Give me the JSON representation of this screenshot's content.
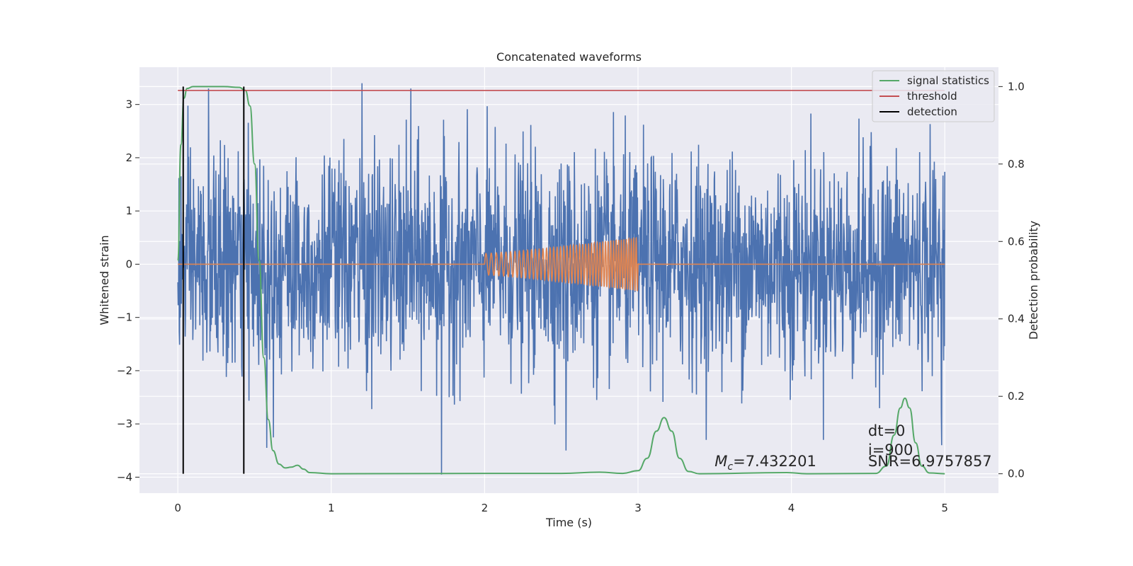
{
  "chart_data": {
    "type": "line",
    "title": "Concatenated waveforms",
    "xlabel": "Time (s)",
    "ylabel_left": "Whitened strain",
    "ylabel_right": "Detection probability",
    "xlim": [
      -0.25,
      5.35
    ],
    "ylim_left": [
      -4.3,
      3.7
    ],
    "ylim_right": [
      -0.05,
      1.05
    ],
    "x_ticks": [
      0,
      1,
      2,
      3,
      4,
      5
    ],
    "y_ticks_left": [
      -4,
      -3,
      -2,
      -1,
      0,
      1,
      2,
      3
    ],
    "y_ticks_right": [
      "0.0",
      "0.2",
      "0.4",
      "0.6",
      "0.8",
      "1.0"
    ],
    "grid": true,
    "legend_position": "top-right",
    "colors": {
      "noise": "#4c72b0",
      "template": "#dd8452",
      "signal_statistics": "#55a868",
      "threshold": "#c44e52",
      "detection": "#000000",
      "background": "#eaeaf2",
      "grid": "#ffffff"
    },
    "series": [
      {
        "name": "",
        "role": "whitened noise strain",
        "axis": "left",
        "x_range": [
          0,
          5
        ],
        "typical_amplitude": 1.0,
        "peaks": [
          {
            "x": 0.2,
            "y": 3.3
          },
          {
            "x": 1.2,
            "y": 3.4
          },
          {
            "x": 1.52,
            "y": 3.3
          },
          {
            "x": 1.72,
            "y": -3.95
          },
          {
            "x": 2.53,
            "y": -3.5
          },
          {
            "x": 4.98,
            "y": -3.4
          },
          {
            "x": 0.58,
            "y": -3.45
          }
        ]
      },
      {
        "name": "",
        "role": "injected chirp template",
        "axis": "left",
        "x_range": [
          0,
          5
        ],
        "chirp_start": 2.0,
        "chirp_end": 3.0,
        "amplitude_start": 0.2,
        "amplitude_end": 0.5
      },
      {
        "name": "signal statistics",
        "axis": "right",
        "points": [
          [
            0.0,
            0.55
          ],
          [
            0.02,
            0.85
          ],
          [
            0.04,
            0.97
          ],
          [
            0.06,
            0.995
          ],
          [
            0.1,
            1.0
          ],
          [
            0.3,
            1.0
          ],
          [
            0.4,
            0.998
          ],
          [
            0.44,
            0.99
          ],
          [
            0.47,
            0.95
          ],
          [
            0.5,
            0.8
          ],
          [
            0.53,
            0.55
          ],
          [
            0.56,
            0.3
          ],
          [
            0.59,
            0.14
          ],
          [
            0.62,
            0.06
          ],
          [
            0.66,
            0.025
          ],
          [
            0.7,
            0.015
          ],
          [
            0.74,
            0.017
          ],
          [
            0.78,
            0.022
          ],
          [
            0.82,
            0.012
          ],
          [
            0.86,
            0.003
          ],
          [
            1.0,
            0.0
          ],
          [
            2.0,
            0.001
          ],
          [
            2.5,
            0.001
          ],
          [
            2.75,
            0.004
          ],
          [
            2.9,
            0.001
          ],
          [
            3.0,
            0.008
          ],
          [
            3.06,
            0.04
          ],
          [
            3.12,
            0.11
          ],
          [
            3.17,
            0.145
          ],
          [
            3.22,
            0.11
          ],
          [
            3.27,
            0.04
          ],
          [
            3.33,
            0.006
          ],
          [
            3.4,
            0.0
          ],
          [
            3.97,
            0.003
          ],
          [
            4.1,
            0.0
          ],
          [
            4.55,
            0.001
          ],
          [
            4.62,
            0.02
          ],
          [
            4.67,
            0.1
          ],
          [
            4.71,
            0.17
          ],
          [
            4.74,
            0.195
          ],
          [
            4.77,
            0.17
          ],
          [
            4.81,
            0.08
          ],
          [
            4.85,
            0.02
          ],
          [
            4.9,
            0.002
          ],
          [
            5.0,
            0.0
          ]
        ]
      },
      {
        "name": "threshold",
        "axis": "right",
        "x_range": [
          0,
          5
        ],
        "value": 0.99
      },
      {
        "name": "detection",
        "axis": "right",
        "x": [
          0.035,
          0.43
        ],
        "y_range": [
          0.0,
          1.0
        ]
      }
    ],
    "annotations": {
      "mc_symbol": "M",
      "mc_subscript": "c",
      "mc_value": "=7.432201",
      "dt": "dt=0",
      "i": "i=900",
      "snr": "SNR=6.9757857"
    }
  }
}
